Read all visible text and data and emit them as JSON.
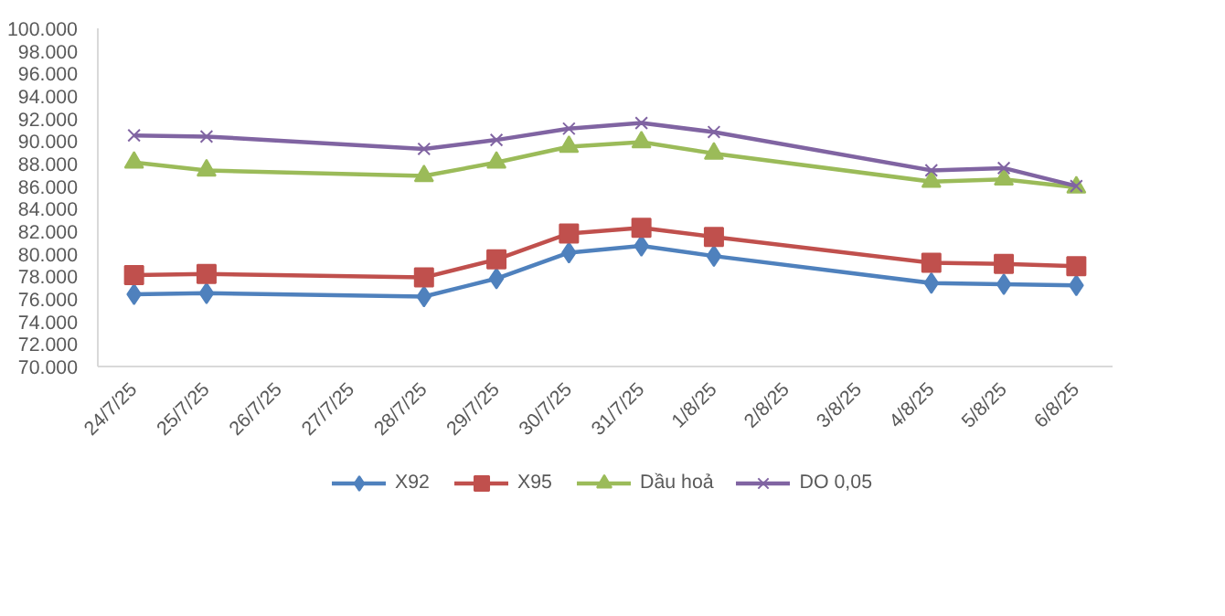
{
  "chart_data": {
    "type": "line",
    "categories": [
      "24/7/25",
      "25/7/25",
      "26/7/25",
      "27/7/25",
      "28/7/25",
      "29/7/25",
      "30/7/25",
      "31/7/25",
      "1/8/25",
      "2/8/25",
      "3/8/25",
      "4/8/25",
      "5/8/25",
      "6/8/25"
    ],
    "series": [
      {
        "name": "X92",
        "color": "#4f81bd",
        "marker": "diamond",
        "values": [
          76400,
          76500,
          null,
          null,
          76200,
          77800,
          80100,
          80700,
          79800,
          null,
          null,
          77400,
          77300,
          77200
        ]
      },
      {
        "name": "X95",
        "color": "#c0504d",
        "marker": "square",
        "values": [
          78100,
          78200,
          null,
          null,
          77900,
          79500,
          81800,
          82300,
          81500,
          null,
          null,
          79200,
          79100,
          78900
        ]
      },
      {
        "name": "Dầu hoả",
        "color": "#9bbb59",
        "marker": "triangle",
        "values": [
          88100,
          87400,
          null,
          null,
          86900,
          88100,
          89500,
          89900,
          88900,
          null,
          null,
          86400,
          86600,
          85900
        ]
      },
      {
        "name": "DO 0,05",
        "color": "#8064a2",
        "marker": "cross",
        "values": [
          90500,
          90400,
          null,
          null,
          89300,
          90100,
          91100,
          91600,
          90800,
          null,
          null,
          87400,
          87600,
          86000
        ]
      }
    ],
    "ylim": [
      70000,
      100000
    ],
    "yticks": [
      {
        "value": 70000,
        "label": "70.000"
      },
      {
        "value": 72000,
        "label": "72.000"
      },
      {
        "value": 74000,
        "label": "74.000"
      },
      {
        "value": 76000,
        "label": "76.000"
      },
      {
        "value": 78000,
        "label": "78.000"
      },
      {
        "value": 80000,
        "label": "80.000"
      },
      {
        "value": 82000,
        "label": "82.000"
      },
      {
        "value": 84000,
        "label": "84.000"
      },
      {
        "value": 86000,
        "label": "86.000"
      },
      {
        "value": 88000,
        "label": "88.000"
      },
      {
        "value": 90000,
        "label": "90.000"
      },
      {
        "value": 92000,
        "label": "92.000"
      },
      {
        "value": 94000,
        "label": "94.000"
      },
      {
        "value": 96000,
        "label": "96.000"
      },
      {
        "value": 98000,
        "label": "98.000"
      },
      {
        "value": 100000,
        "label": "100.000"
      }
    ],
    "grid": false,
    "legend": "bottom"
  }
}
